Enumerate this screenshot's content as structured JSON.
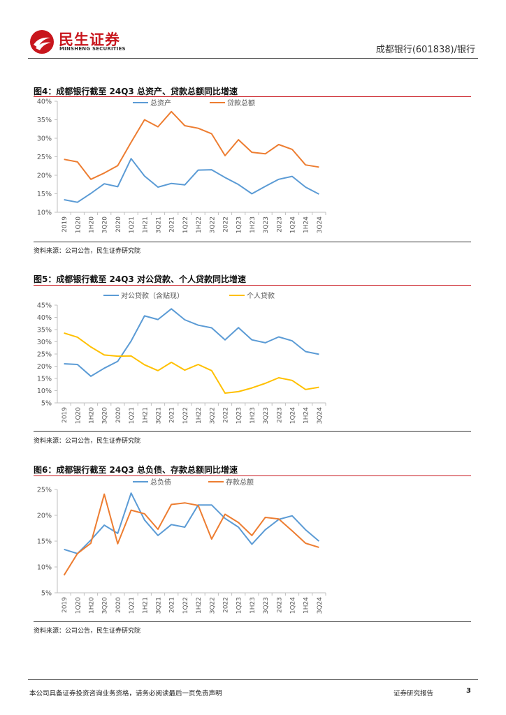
{
  "header": {
    "brand_cn": "民生证券",
    "brand_en": "MINSHENG SECURITIES",
    "doc_tag": "成都银行(601838)/银行"
  },
  "colors": {
    "brand_red": "#c8161d",
    "blue": "#5b9bd5",
    "orange": "#ed7d31",
    "yellow": "#ffc000"
  },
  "charts": [
    {
      "title": "图4：成都银行截至 24Q3 总资产、贷款总额同比增速",
      "source": "资料来源：公司公告，民生证券研究院"
    },
    {
      "title": "图5：成都银行截至 24Q3 对公贷款、个人贷款同比增速",
      "source": "资料来源：公司公告，民生证券研究院"
    },
    {
      "title": "图6：成都银行截至 24Q3 总负债、存款总额同比增速",
      "source": "资料来源：公司公告，民生证券研究院"
    }
  ],
  "chart_data": [
    {
      "type": "line",
      "title": "图4：成都银行截至 24Q3 总资产、贷款总额同比增速",
      "categories": [
        "2019",
        "1Q20",
        "1H20",
        "3Q20",
        "2020",
        "1Q21",
        "1H21",
        "3Q21",
        "2021",
        "1Q22",
        "1H22",
        "3Q22",
        "2022",
        "1Q23",
        "1H23",
        "3Q23",
        "2023",
        "1Q24",
        "1H24",
        "3Q24"
      ],
      "ylim": [
        10,
        40
      ],
      "yticks": [
        10,
        15,
        20,
        25,
        30,
        35,
        40
      ],
      "ysuffix": "%",
      "series": [
        {
          "name": "总资产",
          "color": "#5b9bd5",
          "values": [
            13.4,
            12.7,
            15.1,
            17.7,
            16.9,
            24.5,
            19.8,
            16.8,
            17.8,
            17.4,
            21.4,
            21.5,
            19.4,
            17.5,
            15.0,
            17.0,
            18.9,
            19.7,
            16.8,
            14.9
          ]
        },
        {
          "name": "贷款总额",
          "color": "#ed7d31",
          "values": [
            24.3,
            23.6,
            18.9,
            20.6,
            22.6,
            28.9,
            35.0,
            33.1,
            37.2,
            33.4,
            32.7,
            31.2,
            25.3,
            29.6,
            26.2,
            25.8,
            28.3,
            27.0,
            22.8,
            22.2
          ]
        }
      ]
    },
    {
      "type": "line",
      "title": "图5：成都银行截至 24Q3 对公贷款、个人贷款同比增速",
      "categories": [
        "2019",
        "1Q20",
        "1H20",
        "3Q20",
        "2020",
        "1Q21",
        "1H21",
        "3Q21",
        "2021",
        "1Q22",
        "1H22",
        "3Q22",
        "2022",
        "1Q23",
        "1H23",
        "3Q23",
        "2023",
        "1Q24",
        "1H24",
        "3Q24"
      ],
      "ylim": [
        5,
        45
      ],
      "yticks": [
        5,
        10,
        15,
        20,
        25,
        30,
        35,
        40,
        45
      ],
      "ysuffix": "%",
      "series": [
        {
          "name": "对公贷款（含贴现）",
          "color": "#5b9bd5",
          "values": [
            21.0,
            20.7,
            15.9,
            19.2,
            22.0,
            30.3,
            40.6,
            39.1,
            43.5,
            39.0,
            36.8,
            35.7,
            30.8,
            35.8,
            30.8,
            29.6,
            32.0,
            30.4,
            26.0,
            24.9
          ]
        },
        {
          "name": "个人贷款",
          "color": "#ffc000",
          "values": [
            33.6,
            31.9,
            27.9,
            24.6,
            24.1,
            24.2,
            20.6,
            18.2,
            21.6,
            18.4,
            20.7,
            18.2,
            9.0,
            9.6,
            11.1,
            13.0,
            15.3,
            14.2,
            10.5,
            11.4
          ]
        }
      ]
    },
    {
      "type": "line",
      "title": "图6：成都银行截至 24Q3 总负债、存款总额同比增速",
      "categories": [
        "2019",
        "1Q20",
        "1H20",
        "3Q20",
        "2020",
        "1Q21",
        "1H21",
        "3Q21",
        "2021",
        "1Q22",
        "1H22",
        "3Q22",
        "2022",
        "1Q23",
        "1H23",
        "3Q23",
        "2023",
        "1Q24",
        "1H24",
        "3Q24"
      ],
      "ylim": [
        5,
        25
      ],
      "yticks": [
        5,
        10,
        15,
        20,
        25
      ],
      "ysuffix": "%",
      "series": [
        {
          "name": "总负债",
          "color": "#5b9bd5",
          "values": [
            13.4,
            12.6,
            15.2,
            18.1,
            16.5,
            24.3,
            19.1,
            16.1,
            18.2,
            17.7,
            22.0,
            22.0,
            19.4,
            17.7,
            14.4,
            17.2,
            19.2,
            19.9,
            17.2,
            15.0
          ]
        },
        {
          "name": "存款总额",
          "color": "#ed7d31",
          "values": [
            8.4,
            12.6,
            14.6,
            24.1,
            14.5,
            21.0,
            20.3,
            17.3,
            22.1,
            22.4,
            21.9,
            15.4,
            20.2,
            18.6,
            16.1,
            19.6,
            19.3,
            17.0,
            14.6,
            13.8
          ]
        }
      ]
    }
  ],
  "footer": {
    "disclaimer": "本公司具备证券投资咨询业务资格，请务必阅读最后一页免责声明",
    "report_type": "证券研究报告",
    "page_number": "3"
  }
}
